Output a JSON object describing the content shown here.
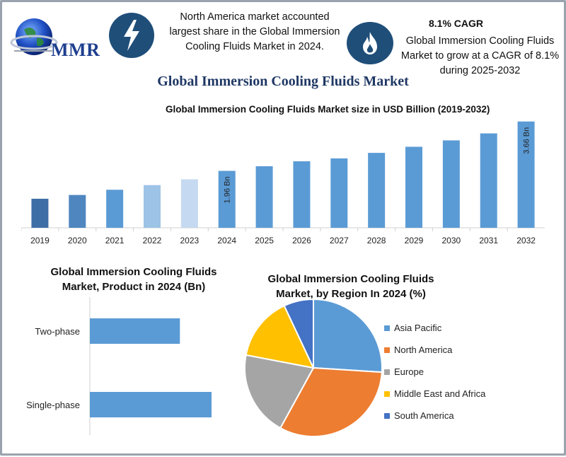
{
  "header": {
    "logo_text": "MMR",
    "info_left": "North America market accounted largest share in the Global Immersion Cooling Fluids Market in 2024.",
    "cagr_title": "8.1% CAGR",
    "cagr_text": "Global Immersion Cooling Fluids Market to grow at a CAGR of 8.1% during 2025-2032",
    "main_title": "Global Immersion Cooling Fluids Market",
    "icons": [
      "lightning-icon",
      "flame-icon",
      "globe-icon"
    ]
  },
  "chart_data": [
    {
      "type": "bar",
      "title": "Global Immersion Cooling Fluids Market size in USD Billion (2019-2032)",
      "categories": [
        "2019",
        "2020",
        "2021",
        "2022",
        "2023",
        "2024",
        "2025",
        "2026",
        "2027",
        "2028",
        "2029",
        "2030",
        "2031",
        "2032"
      ],
      "values": [
        1.0,
        1.13,
        1.31,
        1.47,
        1.67,
        1.96,
        2.12,
        2.29,
        2.39,
        2.58,
        2.79,
        3.01,
        3.25,
        3.66
      ],
      "data_labels": {
        "2024": "1.96 Bn",
        "2032": "3.66 Bn"
      },
      "colors": [
        "#3e6ea6",
        "#4f86c0",
        "#5b9bd5",
        "#9dc3e6",
        "#c5d9f0",
        "#5b9bd5",
        "#5b9bd5",
        "#5b9bd5",
        "#5b9bd5",
        "#5b9bd5",
        "#5b9bd5",
        "#5b9bd5",
        "#5b9bd5",
        "#5b9bd5"
      ],
      "ylim": [
        0,
        3.8
      ]
    },
    {
      "type": "bar",
      "orientation": "horizontal",
      "title": "Global Immersion Cooling Fluids Market, Product in 2024 (Bn)",
      "categories": [
        "Two-phase",
        "Single-phase"
      ],
      "values": [
        0.74,
        1.0
      ],
      "color": "#5b9bd5"
    },
    {
      "type": "pie",
      "title": "Global Immersion Cooling Fluids Market, by Region In 2024 (%)",
      "categories": [
        "Asia Pacific",
        "North America",
        "Europe",
        "Middle East and Africa",
        "South America"
      ],
      "values": [
        26,
        32,
        20,
        15,
        7
      ],
      "colors": [
        "#5b9bd5",
        "#ed7d31",
        "#a5a5a5",
        "#ffc000",
        "#4472c4"
      ]
    }
  ]
}
